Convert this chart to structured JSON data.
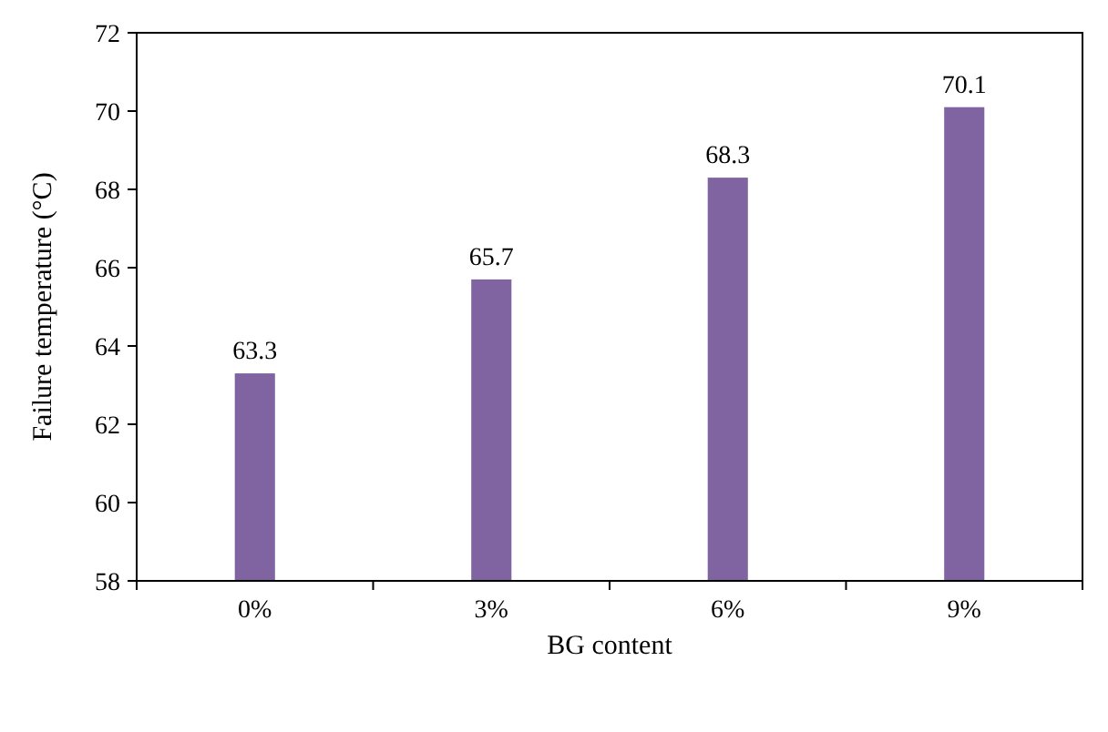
{
  "chart_data": {
    "type": "bar",
    "xlabel": "BG content",
    "ylabel": "Failure temperature (°C)",
    "categories": [
      "0%",
      "3%",
      "6%",
      "9%"
    ],
    "values": [
      63.3,
      65.7,
      68.3,
      70.1
    ],
    "color": "#8064a2",
    "ylim": [
      58,
      72
    ],
    "yticks": [
      58,
      60,
      62,
      64,
      66,
      68,
      70,
      72
    ],
    "grid": false,
    "data_labels": true
  }
}
